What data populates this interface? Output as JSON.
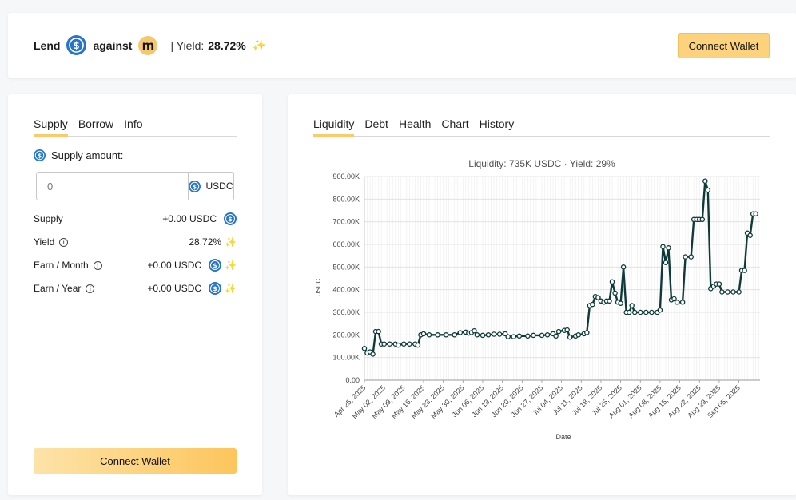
{
  "header": {
    "lend": "Lend",
    "against": "against",
    "yield_label": "| Yield:",
    "yield_value": "28.72%",
    "sparkle_icon": "sparkle-icon",
    "collateral_letter": "m",
    "connect_label": "Connect Wallet"
  },
  "left_panel": {
    "tabs": [
      {
        "label": "Supply",
        "active": true
      },
      {
        "label": "Borrow",
        "active": false
      },
      {
        "label": "Info",
        "active": false
      }
    ],
    "amount_label": "Supply amount:",
    "input_placeholder": "0",
    "input_unit": "USDC",
    "rows": [
      {
        "label": "Supply",
        "value": "+0.00 USDC",
        "info": false
      },
      {
        "label": "Yield",
        "value": "28.72%",
        "info": true
      },
      {
        "label": "Earn / Month",
        "value": "+0.00 USDC",
        "info": true
      },
      {
        "label": "Earn / Year",
        "value": "+0.00 USDC",
        "info": true
      }
    ],
    "connect_label": "Connect Wallet"
  },
  "right_panel": {
    "tabs": [
      {
        "label": "Liquidity",
        "active": true
      },
      {
        "label": "Debt",
        "active": false
      },
      {
        "label": "Health",
        "active": false
      },
      {
        "label": "Chart",
        "active": false
      },
      {
        "label": "History",
        "active": false
      }
    ]
  },
  "colors": {
    "accent": "#fdc96d",
    "usdc": "#2775ca",
    "line": "#0e3a3a"
  },
  "chart_data": {
    "type": "line",
    "title": "Liquidity: 735K USDC · Yield: 29%",
    "xlabel": "Date",
    "ylabel": "USDC",
    "ylim": [
      0,
      900000
    ],
    "yticks": [
      "0.00",
      "100.00K",
      "200.00K",
      "300.00K",
      "400.00K",
      "500.00K",
      "600.00K",
      "700.00K",
      "800.00K",
      "900.00K"
    ],
    "xticks": [
      "Apr 25, 2025",
      "May 02, 2025",
      "May 09, 2025",
      "May 16, 2025",
      "May 23, 2025",
      "May 30, 2025",
      "Jun 06, 2025",
      "Jun 13, 2025",
      "Jun 20, 2025",
      "Jun 27, 2025",
      "Jul 04, 2025",
      "Jul 11, 2025",
      "Jul 18, 2025",
      "Jul 25, 2025",
      "Aug 01, 2025",
      "Aug 08, 2025",
      "Aug 15, 2025",
      "Aug 22, 2025",
      "Aug 29, 2025",
      "Sep 05, 2025"
    ],
    "grid": true,
    "series": [
      {
        "points": [
          [
            "2025-04-25",
            140000
          ],
          [
            "2025-04-26",
            120000
          ],
          [
            "2025-04-27",
            125000
          ],
          [
            "2025-04-28",
            115000
          ],
          [
            "2025-04-29",
            215000
          ],
          [
            "2025-04-30",
            215000
          ],
          [
            "2025-05-01",
            160000
          ],
          [
            "2025-05-02",
            160000
          ],
          [
            "2025-05-04",
            160000
          ],
          [
            "2025-05-06",
            160000
          ],
          [
            "2025-05-07",
            155000
          ],
          [
            "2025-05-09",
            160000
          ],
          [
            "2025-05-11",
            160000
          ],
          [
            "2025-05-13",
            160000
          ],
          [
            "2025-05-14",
            155000
          ],
          [
            "2025-05-15",
            200000
          ],
          [
            "2025-05-16",
            205000
          ],
          [
            "2025-05-18",
            200000
          ],
          [
            "2025-05-21",
            200000
          ],
          [
            "2025-05-24",
            200000
          ],
          [
            "2025-05-27",
            200000
          ],
          [
            "2025-05-29",
            210000
          ],
          [
            "2025-05-31",
            212000
          ],
          [
            "2025-06-01",
            208000
          ],
          [
            "2025-06-02",
            210000
          ],
          [
            "2025-06-03",
            218000
          ],
          [
            "2025-06-04",
            200000
          ],
          [
            "2025-06-06",
            198000
          ],
          [
            "2025-06-08",
            200000
          ],
          [
            "2025-06-10",
            203000
          ],
          [
            "2025-06-12",
            203000
          ],
          [
            "2025-06-14",
            205000
          ],
          [
            "2025-06-15",
            192000
          ],
          [
            "2025-06-17",
            192000
          ],
          [
            "2025-06-19",
            195000
          ],
          [
            "2025-06-22",
            195000
          ],
          [
            "2025-06-24",
            198000
          ],
          [
            "2025-06-27",
            198000
          ],
          [
            "2025-06-29",
            200000
          ],
          [
            "2025-07-01",
            205000
          ],
          [
            "2025-07-02",
            195000
          ],
          [
            "2025-07-03",
            215000
          ],
          [
            "2025-07-05",
            220000
          ],
          [
            "2025-07-06",
            222000
          ],
          [
            "2025-07-07",
            190000
          ],
          [
            "2025-07-09",
            195000
          ],
          [
            "2025-07-10",
            200000
          ],
          [
            "2025-07-12",
            205000
          ],
          [
            "2025-07-13",
            210000
          ],
          [
            "2025-07-14",
            330000
          ],
          [
            "2025-07-15",
            335000
          ],
          [
            "2025-07-16",
            370000
          ],
          [
            "2025-07-17",
            365000
          ],
          [
            "2025-07-18",
            350000
          ],
          [
            "2025-07-19",
            345000
          ],
          [
            "2025-07-20",
            350000
          ],
          [
            "2025-07-21",
            350000
          ],
          [
            "2025-07-22",
            435000
          ],
          [
            "2025-07-23",
            385000
          ],
          [
            "2025-07-24",
            345000
          ],
          [
            "2025-07-25",
            340000
          ],
          [
            "2025-07-26",
            500000
          ],
          [
            "2025-07-27",
            300000
          ],
          [
            "2025-07-28",
            300000
          ],
          [
            "2025-07-29",
            330000
          ],
          [
            "2025-07-30",
            300000
          ],
          [
            "2025-08-01",
            300000
          ],
          [
            "2025-08-03",
            300000
          ],
          [
            "2025-08-05",
            300000
          ],
          [
            "2025-08-07",
            300000
          ],
          [
            "2025-08-08",
            310000
          ],
          [
            "2025-08-09",
            590000
          ],
          [
            "2025-08-10",
            520000
          ],
          [
            "2025-08-11",
            585000
          ],
          [
            "2025-08-12",
            355000
          ],
          [
            "2025-08-13",
            360000
          ],
          [
            "2025-08-14",
            345000
          ],
          [
            "2025-08-16",
            345000
          ],
          [
            "2025-08-17",
            545000
          ],
          [
            "2025-08-19",
            545000
          ],
          [
            "2025-08-20",
            710000
          ],
          [
            "2025-08-21",
            710000
          ],
          [
            "2025-08-22",
            710000
          ],
          [
            "2025-08-23",
            710000
          ],
          [
            "2025-08-24",
            880000
          ],
          [
            "2025-08-25",
            840000
          ],
          [
            "2025-08-26",
            405000
          ],
          [
            "2025-08-27",
            415000
          ],
          [
            "2025-08-28",
            425000
          ],
          [
            "2025-08-29",
            425000
          ],
          [
            "2025-08-30",
            390000
          ],
          [
            "2025-09-01",
            390000
          ],
          [
            "2025-09-03",
            390000
          ],
          [
            "2025-09-05",
            390000
          ],
          [
            "2025-09-06",
            485000
          ],
          [
            "2025-09-07",
            485000
          ],
          [
            "2025-09-08",
            650000
          ],
          [
            "2025-09-09",
            640000
          ],
          [
            "2025-09-10",
            735000
          ],
          [
            "2025-09-11",
            735000
          ]
        ]
      }
    ]
  }
}
